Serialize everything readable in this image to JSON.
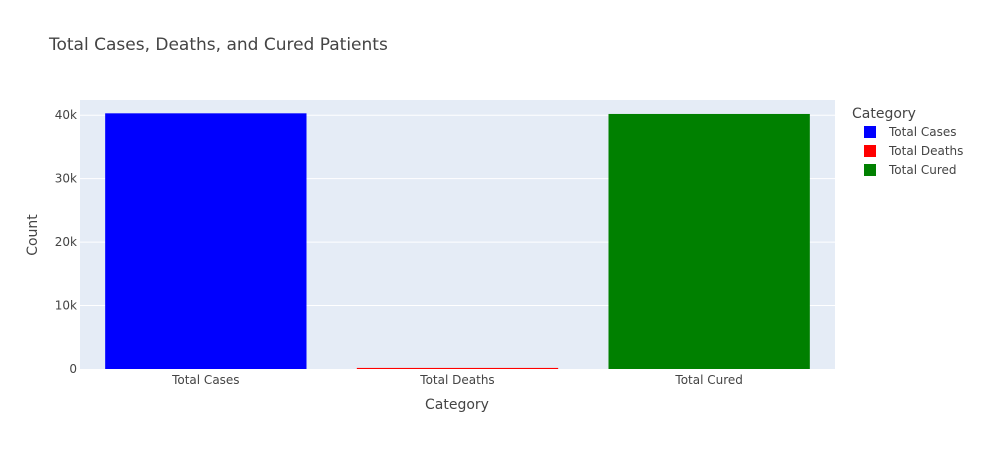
{
  "chart_data": {
    "type": "bar",
    "title": "Total Cases, Deaths, and Cured Patients",
    "xlabel": "Category",
    "ylabel": "Count",
    "categories": [
      "Total Cases",
      "Total Deaths",
      "Total Cured"
    ],
    "values": [
      40300,
      170,
      40200
    ],
    "colors": [
      "#0000ff",
      "#ff0000",
      "#008000"
    ],
    "ylim": [
      0,
      42400
    ],
    "yticks": [
      0,
      10000,
      20000,
      30000,
      40000
    ],
    "ytick_labels": [
      "0",
      "10k",
      "20k",
      "30k",
      "40k"
    ],
    "grid": true,
    "plot_background": "#e5ecf6",
    "legend": {
      "title": "Category",
      "placement": "top-right",
      "entries": [
        "Total Cases",
        "Total Deaths",
        "Total Cured"
      ]
    }
  }
}
